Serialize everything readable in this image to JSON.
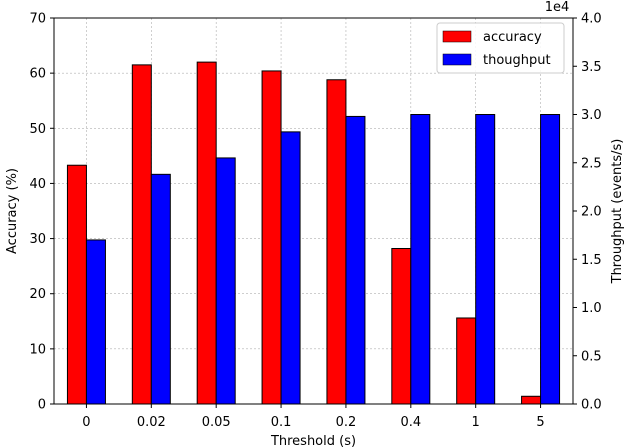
{
  "chart_data": {
    "type": "bar",
    "categories": [
      "0",
      "0.02",
      "0.05",
      "0.1",
      "0.2",
      "0.4",
      "1",
      "5"
    ],
    "series": [
      {
        "name": "accuracy",
        "axis": "left",
        "color": "#ff0000",
        "values": [
          43.3,
          61.5,
          62.0,
          60.4,
          58.8,
          28.2,
          15.6,
          1.4
        ]
      },
      {
        "name": "thoughput",
        "axis": "right",
        "color": "#0000ff",
        "values": [
          17000,
          23800,
          25500,
          28200,
          29800,
          30000,
          30000,
          30000
        ]
      }
    ],
    "xlabel": "Threshold (s)",
    "ylabel": "Accuracy (%)",
    "ylabel_right": "Throughput (events/s)",
    "ylim": [
      0,
      70
    ],
    "ylim_right": [
      0,
      40000
    ],
    "yticks": [
      "0",
      "10",
      "20",
      "30",
      "40",
      "50",
      "60",
      "70"
    ],
    "yticks_right": [
      "0.0",
      "0.5",
      "1.0",
      "1.5",
      "2.0",
      "2.5",
      "3.0",
      "3.5",
      "4.0"
    ],
    "right_axis_multiplier": "1e4",
    "grid": true,
    "legend_position": "upper right"
  }
}
